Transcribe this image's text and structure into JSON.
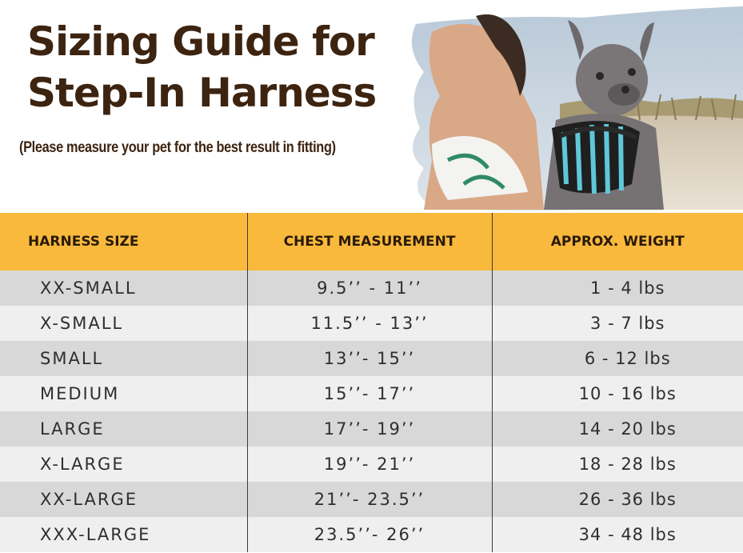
{
  "header": {
    "title_line1": "Sizing Guide for",
    "title_line2": "Step-In Harness",
    "subtitle": "(Please measure your pet for the best result in fitting)"
  },
  "photo": {
    "icon": "dog-wearing-harness-photo"
  },
  "table": {
    "columns": [
      "HARNESS SIZE",
      "CHEST MEASUREMENT",
      "APPROX. WEIGHT"
    ],
    "rows": [
      {
        "size": "XX-SMALL",
        "chest": "9.5’’ -  11’’",
        "weight": "1 - 4 lbs"
      },
      {
        "size": "X-SMALL",
        "chest": "11.5’’ - 13’’",
        "weight": "3 - 7 lbs"
      },
      {
        "size": "SMALL",
        "chest": "13’’- 15’’",
        "weight": "6 - 12 lbs"
      },
      {
        "size": "MEDIUM",
        "chest": "15’’- 17’’",
        "weight": "10 - 16 lbs"
      },
      {
        "size": "LARGE",
        "chest": "17’’- 19’’",
        "weight": "14 - 20 lbs"
      },
      {
        "size": "X-LARGE",
        "chest": "19’’- 21’’",
        "weight": "18 - 28 lbs"
      },
      {
        "size": "XX-LARGE",
        "chest": "21’’- 23.5’’",
        "weight": "26 - 36 lbs"
      },
      {
        "size": "XXX-LARGE",
        "chest": "23.5’’- 26’’",
        "weight": "34 - 48 lbs"
      }
    ]
  },
  "colors": {
    "header_bg": "#f9b93c",
    "title_text": "#3d2410",
    "row_odd": "#d8d8d8",
    "row_even": "#efefef"
  }
}
